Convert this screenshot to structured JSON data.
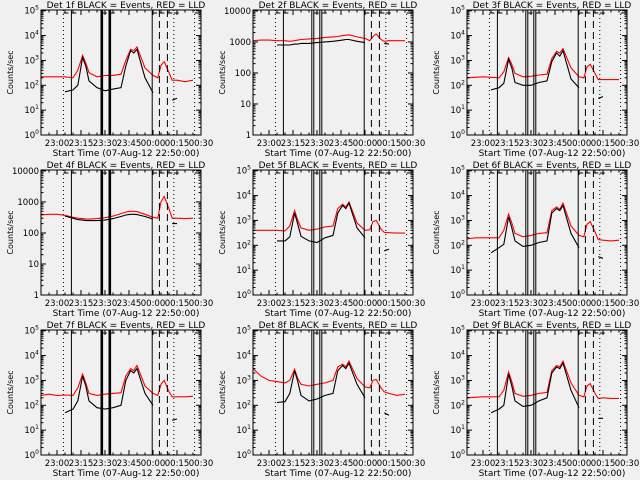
{
  "colors": {
    "background": "#f0f0f0",
    "events": "#000000",
    "lld": "#ff0000",
    "axes": "#000000"
  },
  "chart_data": {
    "type": "line",
    "layout": "3x3 grid",
    "xlabel": "Start Time (07-Aug-12 22:50:00)",
    "ylabel": "Counts/sec",
    "xlim": [
      "22:50",
      "00:30"
    ],
    "xticks": [
      "23:00",
      "23:15",
      "23:30",
      "23:45",
      "00:00",
      "00:15",
      "00:30"
    ],
    "yscale": "log",
    "grid": false,
    "x": [
      "22:50",
      "22:55",
      "23:00",
      "23:05",
      "23:10",
      "23:13",
      "23:16",
      "23:18",
      "23:20",
      "23:25",
      "23:30",
      "23:35",
      "23:40",
      "23:43",
      "23:46",
      "23:48",
      "23:50",
      "23:55",
      "00:00",
      "00:03",
      "00:05",
      "00:07",
      "00:10",
      "00:12",
      "00:15",
      "00:20",
      "00:25"
    ],
    "vertical_lines": [
      {
        "time": "23:04",
        "style": "dotted"
      },
      {
        "time": "23:09",
        "style": "solid"
      },
      {
        "time": "23:28",
        "style": "thick"
      },
      {
        "time": "23:33",
        "style": "thick"
      },
      {
        "time": "23:59.5",
        "style": "solid"
      },
      {
        "time": "00:04",
        "style": "dashed"
      },
      {
        "time": "00:09",
        "style": "dashed"
      },
      {
        "time": "00:13",
        "style": "dotted"
      },
      {
        "time": "00:26",
        "style": "dotted"
      }
    ],
    "panels": [
      {
        "title": "Det 1f BLACK = Events, RED = LLD",
        "ylim": [
          1,
          100000
        ],
        "ytick_style": "power",
        "series": [
          {
            "name": "LLD",
            "color": "#ff0000",
            "values": [
              220,
              220,
              220,
              220,
              200,
              400,
              1600,
              800,
              320,
              220,
              250,
              250,
              280,
              1000,
              2800,
              2500,
              3500,
              500,
              250,
              200,
              630,
              900,
              320,
              160,
              160,
              140,
              160
            ]
          },
          {
            "name": "Events",
            "color": "#000000",
            "values": [
              null,
              null,
              null,
              55,
              65,
              100,
              1300,
              600,
              150,
              80,
              60,
              70,
              80,
              600,
              2500,
              2000,
              2800,
              200,
              50,
              null,
              null,
              null,
              null,
              25,
              30,
              null,
              null
            ]
          }
        ]
      },
      {
        "title": "Det 2f BLACK = Events, RED = LLD",
        "ylim": [
          1,
          10000
        ],
        "ytick_style": "plain",
        "series": [
          {
            "name": "LLD",
            "color": "#ff0000",
            "values": [
              1100,
              1150,
              1150,
              1100,
              1100,
              1050,
              1100,
              1150,
              1200,
              1250,
              1300,
              1400,
              1450,
              1500,
              1600,
              1650,
              1700,
              1450,
              1300,
              1100,
              1500,
              1800,
              1200,
              1050,
              1100,
              1100,
              1100
            ]
          },
          {
            "name": "Events",
            "color": "#000000",
            "values": [
              null,
              null,
              null,
              800,
              800,
              800,
              850,
              850,
              900,
              900,
              950,
              1000,
              1050,
              1100,
              1150,
              1200,
              1200,
              1050,
              950,
              null,
              null,
              null,
              null,
              900,
              850,
              null,
              null
            ]
          }
        ]
      },
      {
        "title": "Det 3f BLACK = Events, RED = LLD",
        "ylim": [
          1,
          100000
        ],
        "ytick_style": "power",
        "series": [
          {
            "name": "LLD",
            "color": "#ff0000",
            "values": [
              200,
              210,
              220,
              210,
              200,
              350,
              1300,
              700,
              300,
              220,
              230,
              260,
              280,
              1200,
              2300,
              2000,
              3000,
              500,
              220,
              200,
              550,
              700,
              300,
              170,
              170,
              170,
              170
            ]
          },
          {
            "name": "Events",
            "color": "#000000",
            "values": [
              null,
              null,
              null,
              65,
              80,
              120,
              1100,
              500,
              130,
              100,
              100,
              130,
              150,
              900,
              2000,
              1500,
              2500,
              180,
              80,
              null,
              null,
              null,
              null,
              30,
              35,
              null,
              null
            ]
          }
        ]
      },
      {
        "title": "Det 4f BLACK = Events, RED = LLD",
        "ylim": [
          1,
          10000
        ],
        "ytick_style": "plain",
        "series": [
          {
            "name": "LLD",
            "color": "#ff0000",
            "values": [
              380,
              400,
              400,
              370,
              320,
              300,
              290,
              280,
              280,
              290,
              310,
              350,
              420,
              470,
              500,
              500,
              490,
              400,
              320,
              300,
              1000,
              1500,
              600,
              300,
              300,
              290,
              300
            ]
          },
          {
            "name": "Events",
            "color": "#000000",
            "values": [
              null,
              null,
              null,
              350,
              300,
              270,
              260,
              250,
              250,
              250,
              260,
              290,
              340,
              380,
              400,
              400,
              390,
              340,
              280,
              null,
              null,
              null,
              null,
              200,
              200,
              null,
              null
            ]
          }
        ]
      },
      {
        "title": "Det 5f BLACK = Events, RED = LLD",
        "ylim": [
          1,
          100000
        ],
        "ytick_style": "power",
        "series": [
          {
            "name": "LLD",
            "color": "#ff0000",
            "values": [
              400,
              400,
              400,
              400,
              380,
              600,
              2500,
              1000,
              500,
              400,
              450,
              550,
              600,
              3000,
              4500,
              3500,
              5500,
              800,
              400,
              420,
              900,
              1000,
              450,
              330,
              320,
              310,
              310
            ]
          },
          {
            "name": "Events",
            "color": "#000000",
            "values": [
              null,
              null,
              null,
              150,
              150,
              220,
              2000,
              700,
              230,
              150,
              130,
              200,
              250,
              2000,
              4000,
              3000,
              5000,
              500,
              200,
              null,
              null,
              null,
              null,
              60,
              70,
              null,
              null
            ]
          }
        ]
      },
      {
        "title": "Det 6f BLACK = Events, RED = LLD",
        "ylim": [
          1,
          100000
        ],
        "ytick_style": "power",
        "series": [
          {
            "name": "LLD",
            "color": "#ff0000",
            "values": [
              180,
              200,
              200,
              200,
              200,
              400,
              1800,
              800,
              300,
              220,
              250,
              300,
              320,
              2500,
              3500,
              2800,
              5000,
              600,
              250,
              220,
              700,
              900,
              350,
              170,
              160,
              150,
              160
            ]
          },
          {
            "name": "Events",
            "color": "#000000",
            "values": [
              null,
              null,
              null,
              50,
              80,
              110,
              1400,
              500,
              150,
              90,
              100,
              130,
              150,
              2000,
              3000,
              2500,
              4000,
              300,
              80,
              null,
              null,
              null,
              null,
              35,
              30,
              null,
              null
            ]
          }
        ]
      },
      {
        "title": "Det 7f BLACK = Events, RED = LLD",
        "ylim": [
          1,
          100000
        ],
        "ytick_style": "power",
        "series": [
          {
            "name": "LLD",
            "color": "#ff0000",
            "values": [
              250,
              280,
              250,
              260,
              250,
              500,
              1800,
              800,
              300,
              250,
              280,
              300,
              320,
              1500,
              3000,
              2500,
              4000,
              600,
              300,
              250,
              700,
              1000,
              350,
              220,
              220,
              220,
              230
            ]
          },
          {
            "name": "Events",
            "color": "#000000",
            "values": [
              null,
              null,
              null,
              50,
              70,
              150,
              1500,
              600,
              150,
              80,
              70,
              80,
              100,
              1000,
              2500,
              2000,
              3000,
              300,
              100,
              null,
              null,
              null,
              null,
              25,
              28,
              null,
              null
            ]
          }
        ]
      },
      {
        "title": "Det 8f BLACK = Events, RED = LLD",
        "ylim": [
          1,
          100000
        ],
        "ytick_style": "power",
        "series": [
          {
            "name": "LLD",
            "color": "#ff0000",
            "values": [
              3000,
              1500,
              1000,
              900,
              800,
              1000,
              2800,
              1200,
              700,
              600,
              700,
              800,
              1000,
              3500,
              4500,
              3500,
              6000,
              1200,
              550,
              500,
              1000,
              1100,
              500,
              350,
              300,
              250,
              280
            ]
          },
          {
            "name": "Events",
            "color": "#000000",
            "values": [
              null,
              null,
              null,
              130,
              140,
              300,
              2500,
              900,
              250,
              150,
              180,
              250,
              300,
              2500,
              4000,
              3000,
              5000,
              700,
              200,
              null,
              null,
              null,
              null,
              50,
              40,
              null,
              null
            ]
          }
        ]
      },
      {
        "title": "Det 9f BLACK = Events, RED = LLD",
        "ylim": [
          1,
          100000
        ],
        "ytick_style": "power",
        "series": [
          {
            "name": "LLD",
            "color": "#ff0000",
            "values": [
              200,
              210,
              220,
              220,
              220,
              400,
              2200,
              900,
              300,
              230,
              250,
              300,
              330,
              2500,
              4000,
              3500,
              6000,
              800,
              250,
              220,
              600,
              750,
              300,
              190,
              200,
              190,
              190
            ]
          },
          {
            "name": "Events",
            "color": "#000000",
            "values": [
              null,
              null,
              null,
              50,
              70,
              100,
              1800,
              600,
              150,
              90,
              100,
              150,
              200,
              2000,
              3500,
              3000,
              5000,
              400,
              80,
              null,
              null,
              null,
              null,
              30,
              30,
              null,
              null
            ]
          }
        ]
      }
    ]
  }
}
